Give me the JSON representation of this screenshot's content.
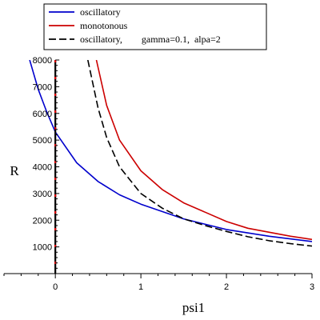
{
  "chart_data": {
    "type": "line",
    "xlabel": "psi1",
    "ylabel": "R",
    "xlim": [
      -0.6,
      3.0
    ],
    "ylim": [
      0,
      8000
    ],
    "xticks": [
      0,
      1,
      2,
      3
    ],
    "yticks": [
      1000,
      2000,
      3000,
      4000,
      5000,
      6000,
      7000,
      8000
    ],
    "legend_position": "top-left",
    "series": [
      {
        "name": "oscillatory",
        "color": "#0000cc",
        "dash": "solid",
        "x": [
          -0.3,
          -0.2,
          -0.1,
          0.0,
          0.25,
          0.5,
          0.75,
          1.0,
          1.5,
          2.0,
          2.5,
          3.0
        ],
        "y": [
          8000,
          6900,
          6050,
          5300,
          4150,
          3450,
          2950,
          2600,
          2050,
          1650,
          1400,
          1200
        ]
      },
      {
        "name": "monotonous",
        "color": "#cc0000",
        "dash": "solid",
        "x": [
          0.48,
          0.6,
          0.75,
          1.0,
          1.25,
          1.5,
          1.75,
          2.0,
          2.25,
          2.5,
          2.75,
          3.0
        ],
        "y": [
          8000,
          6300,
          5000,
          3850,
          3150,
          2650,
          2300,
          1950,
          1700,
          1550,
          1400,
          1280
        ]
      },
      {
        "name": "oscillatory,        gamma=0.1,  alpa=2",
        "color": "#000000",
        "dash": "dashed",
        "x": [
          0.38,
          0.5,
          0.6,
          0.75,
          1.0,
          1.25,
          1.5,
          1.75,
          2.0,
          2.25,
          2.5,
          2.75,
          3.0
        ],
        "y": [
          8000,
          6200,
          5100,
          4000,
          3000,
          2450,
          2050,
          1800,
          1580,
          1380,
          1230,
          1120,
          1030
        ]
      }
    ]
  }
}
